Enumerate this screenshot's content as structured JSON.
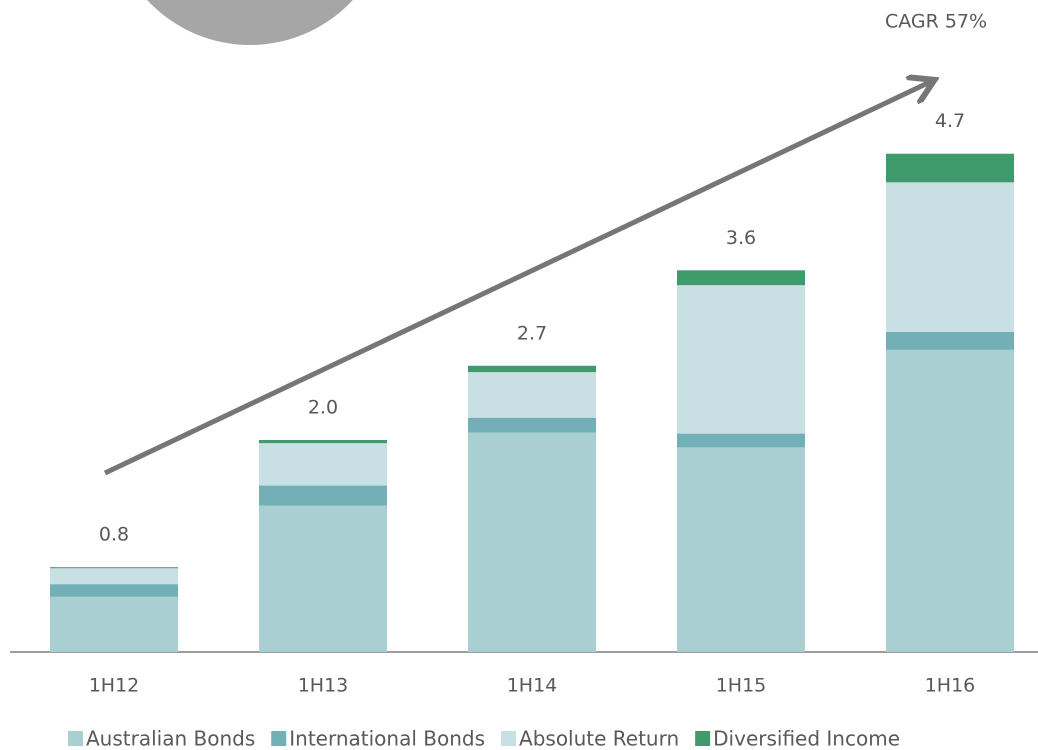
{
  "chart_data": {
    "type": "stacked_bar",
    "categories": [
      "1H12",
      "1H13",
      "1H14",
      "1H15",
      "1H16"
    ],
    "series": [
      {
        "name": "Australian Bonds",
        "color": "#aacfd2",
        "values": [
          0.52,
          1.38,
          2.07,
          1.93,
          2.85
        ]
      },
      {
        "name": "International Bonds",
        "color": "#72afb6",
        "values": [
          0.12,
          0.19,
          0.14,
          0.13,
          0.17
        ]
      },
      {
        "name": "Absolute Return",
        "color": "#c8e0e4",
        "values": [
          0.15,
          0.4,
          0.43,
          1.4,
          1.41
        ]
      },
      {
        "name": "Diversified Income",
        "color": "#3f9b6c",
        "values": [
          0.01,
          0.03,
          0.06,
          0.14,
          0.27
        ]
      }
    ],
    "totals": [
      0.8,
      2.0,
      2.7,
      3.6,
      4.7
    ],
    "total_labels": [
      "0.8",
      "2.0",
      "2.7",
      "3.6",
      "4.7"
    ],
    "annotation": "CAGR 57%",
    "ylim": [
      0,
      6.15
    ],
    "legend": "bottom"
  }
}
